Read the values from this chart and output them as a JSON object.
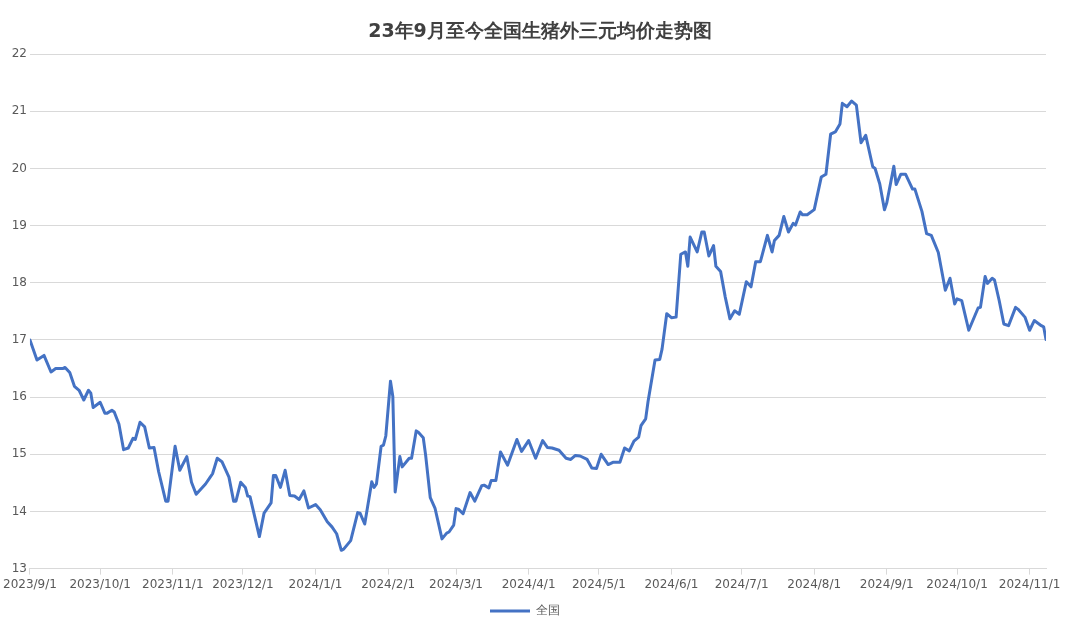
{
  "chart_data": {
    "type": "line",
    "title": "23年9月至今全国生猪外三元均价走势图",
    "x": [
      "2023-09-01",
      "2023-09-04",
      "2023-09-07",
      "2023-09-10",
      "2023-09-12",
      "2023-09-15",
      "2023-09-16",
      "2023-09-18",
      "2023-09-20",
      "2023-09-22",
      "2023-09-24",
      "2023-09-26",
      "2023-09-27",
      "2023-09-28",
      "2023-10-01",
      "2023-10-03",
      "2023-10-04",
      "2023-10-06",
      "2023-10-07",
      "2023-10-09",
      "2023-10-11",
      "2023-10-13",
      "2023-10-15",
      "2023-10-16",
      "2023-10-18",
      "2023-10-20",
      "2023-10-22",
      "2023-10-24",
      "2023-10-26",
      "2023-10-29",
      "2023-10-30",
      "2023-11-02",
      "2023-11-04",
      "2023-11-07",
      "2023-11-09",
      "2023-11-11",
      "2023-11-15",
      "2023-11-17",
      "2023-11-18",
      "2023-11-20",
      "2023-11-22",
      "2023-11-25",
      "2023-11-27",
      "2023-11-28",
      "2023-11-30",
      "2023-12-02",
      "2023-12-03",
      "2023-12-04",
      "2023-12-08",
      "2023-12-10",
      "2023-12-13",
      "2023-12-14",
      "2023-12-15",
      "2023-12-17",
      "2023-12-19",
      "2023-12-21",
      "2023-12-23",
      "2023-12-25",
      "2023-12-27",
      "2023-12-29",
      "2024-01-01",
      "2024-01-03",
      "2024-01-06",
      "2024-01-08",
      "2024-01-10",
      "2024-01-12",
      "2024-01-13",
      "2024-01-16",
      "2024-01-19",
      "2024-01-20",
      "2024-01-22",
      "2024-01-25",
      "2024-01-26",
      "2024-01-27",
      "2024-01-29",
      "2024-01-30",
      "2024-01-31",
      "2024-02-02",
      "2024-02-03",
      "2024-02-04",
      "2024-02-06",
      "2024-02-07",
      "2024-02-10",
      "2024-02-11",
      "2024-02-13",
      "2024-02-14",
      "2024-02-16",
      "2024-02-17",
      "2024-02-19",
      "2024-02-21",
      "2024-02-24",
      "2024-02-26",
      "2024-02-27",
      "2024-02-29",
      "2024-03-01",
      "2024-03-02",
      "2024-03-04",
      "2024-03-07",
      "2024-03-09",
      "2024-03-12",
      "2024-03-13",
      "2024-03-15",
      "2024-03-16",
      "2024-03-18",
      "2024-03-20",
      "2024-03-23",
      "2024-03-27",
      "2024-03-29",
      "2024-04-01",
      "2024-04-04",
      "2024-04-07",
      "2024-04-09",
      "2024-04-11",
      "2024-04-14",
      "2024-04-17",
      "2024-04-19",
      "2024-04-21",
      "2024-04-23",
      "2024-04-26",
      "2024-04-28",
      "2024-04-30",
      "2024-05-02",
      "2024-05-05",
      "2024-05-07",
      "2024-05-10",
      "2024-05-12",
      "2024-05-14",
      "2024-05-16",
      "2024-05-18",
      "2024-05-19",
      "2024-05-21",
      "2024-05-22",
      "2024-05-25",
      "2024-05-27",
      "2024-05-28",
      "2024-05-30",
      "2024-06-01",
      "2024-06-03",
      "2024-06-05",
      "2024-06-07",
      "2024-06-08",
      "2024-06-09",
      "2024-06-12",
      "2024-06-14",
      "2024-06-15",
      "2024-06-17",
      "2024-06-19",
      "2024-06-20",
      "2024-06-22",
      "2024-06-24",
      "2024-06-26",
      "2024-06-28",
      "2024-06-30",
      "2024-07-03",
      "2024-07-05",
      "2024-07-07",
      "2024-07-09",
      "2024-07-12",
      "2024-07-14",
      "2024-07-15",
      "2024-07-17",
      "2024-07-19",
      "2024-07-21",
      "2024-07-23",
      "2024-07-24",
      "2024-07-26",
      "2024-07-27",
      "2024-07-29",
      "2024-08-01",
      "2024-08-04",
      "2024-08-06",
      "2024-08-08",
      "2024-08-10",
      "2024-08-12",
      "2024-08-13",
      "2024-08-15",
      "2024-08-17",
      "2024-08-19",
      "2024-08-21",
      "2024-08-23",
      "2024-08-26",
      "2024-08-27",
      "2024-08-29",
      "2024-08-31",
      "2024-09-01",
      "2024-09-04",
      "2024-09-05",
      "2024-09-07",
      "2024-09-09",
      "2024-09-12",
      "2024-09-13",
      "2024-09-16",
      "2024-09-18",
      "2024-09-20",
      "2024-09-23",
      "2024-09-26",
      "2024-09-28",
      "2024-09-30",
      "2024-10-01",
      "2024-10-03",
      "2024-10-06",
      "2024-10-10",
      "2024-10-11",
      "2024-10-13",
      "2024-10-14",
      "2024-10-16",
      "2024-10-17",
      "2024-10-19",
      "2024-10-21",
      "2024-10-23",
      "2024-10-26",
      "2024-10-27",
      "2024-10-30",
      "2024-11-01",
      "2024-11-03",
      "2024-11-06",
      "2024-11-07",
      "2024-11-08"
    ],
    "series": [
      {
        "name": "全国",
        "color": "#4472c4",
        "values": [
          17.0,
          16.65,
          16.73,
          16.44,
          16.5,
          16.5,
          16.52,
          16.43,
          16.19,
          16.12,
          15.95,
          16.12,
          16.07,
          15.82,
          15.91,
          15.72,
          15.72,
          15.77,
          15.74,
          15.53,
          15.08,
          15.11,
          15.28,
          15.26,
          15.56,
          15.48,
          15.11,
          15.12,
          14.69,
          14.18,
          14.18,
          15.14,
          14.72,
          14.96,
          14.51,
          14.3,
          14.48,
          14.6,
          14.66,
          14.93,
          14.87,
          14.6,
          14.18,
          14.18,
          14.51,
          14.42,
          14.27,
          14.26,
          13.56,
          13.97,
          14.15,
          14.63,
          14.63,
          14.42,
          14.72,
          14.28,
          14.27,
          14.21,
          14.36,
          14.06,
          14.12,
          14.03,
          13.82,
          13.73,
          13.61,
          13.32,
          13.34,
          13.49,
          13.98,
          13.97,
          13.78,
          14.52,
          14.42,
          14.48,
          15.14,
          15.16,
          15.32,
          16.28,
          16.01,
          14.34,
          14.96,
          14.78,
          14.93,
          14.93,
          15.41,
          15.38,
          15.29,
          14.99,
          14.24,
          14.06,
          13.52,
          13.62,
          13.64,
          13.76,
          14.05,
          14.04,
          13.96,
          14.33,
          14.18,
          14.45,
          14.46,
          14.41,
          14.54,
          14.54,
          15.04,
          14.81,
          15.26,
          15.05,
          15.24,
          14.93,
          15.24,
          15.12,
          15.11,
          15.07,
          14.93,
          14.91,
          14.98,
          14.97,
          14.91,
          14.76,
          14.75,
          15.0,
          14.82,
          14.86,
          14.86,
          15.11,
          15.06,
          15.23,
          15.3,
          15.5,
          15.62,
          15.92,
          16.65,
          16.66,
          16.84,
          17.46,
          17.39,
          17.4,
          18.5,
          18.54,
          18.29,
          18.8,
          18.54,
          18.89,
          18.89,
          18.47,
          18.65,
          18.29,
          18.2,
          17.75,
          17.37,
          17.51,
          17.45,
          18.02,
          17.93,
          18.37,
          18.37,
          18.83,
          18.54,
          18.74,
          18.83,
          19.16,
          18.89,
          19.04,
          19.01,
          19.24,
          19.19,
          19.19,
          19.28,
          19.85,
          19.9,
          20.6,
          20.64,
          20.78,
          21.14,
          21.08,
          21.18,
          21.11,
          20.45,
          20.58,
          20.03,
          20.0,
          19.73,
          19.28,
          19.4,
          20.04,
          19.72,
          19.9,
          19.9,
          19.64,
          19.64,
          19.25,
          18.86,
          18.83,
          18.53,
          17.87,
          18.08,
          17.63,
          17.72,
          17.69,
          17.17,
          17.56,
          17.57,
          18.11,
          17.99,
          18.08,
          18.05,
          17.69,
          17.28,
          17.25,
          17.57,
          17.54,
          17.4,
          17.17,
          17.34,
          17.25,
          17.23,
          17.01
        ]
      }
    ],
    "xlim": [
      "2023-09-01",
      "2024-11-08"
    ],
    "xticks": [
      {
        "value": "2023-09-01",
        "label": "2023/9/1"
      },
      {
        "value": "2023-10-01",
        "label": "2023/10/1"
      },
      {
        "value": "2023-11-01",
        "label": "2023/11/1"
      },
      {
        "value": "2023-12-01",
        "label": "2023/12/1"
      },
      {
        "value": "2024-01-01",
        "label": "2024/1/1"
      },
      {
        "value": "2024-02-01",
        "label": "2024/2/1"
      },
      {
        "value": "2024-03-01",
        "label": "2024/3/1"
      },
      {
        "value": "2024-04-01",
        "label": "2024/4/1"
      },
      {
        "value": "2024-05-01",
        "label": "2024/5/1"
      },
      {
        "value": "2024-06-01",
        "label": "2024/6/1"
      },
      {
        "value": "2024-07-01",
        "label": "2024/7/1"
      },
      {
        "value": "2024-08-01",
        "label": "2024/8/1"
      },
      {
        "value": "2024-09-01",
        "label": "2024/9/1"
      },
      {
        "value": "2024-10-01",
        "label": "2024/10/1"
      },
      {
        "value": "2024-11-01",
        "label": "2024/11/1"
      }
    ],
    "ylim": [
      13,
      22
    ],
    "yticks": [
      13,
      14,
      15,
      16,
      17,
      18,
      19,
      20,
      21,
      22
    ],
    "grid": "y",
    "legend": "bottom"
  }
}
